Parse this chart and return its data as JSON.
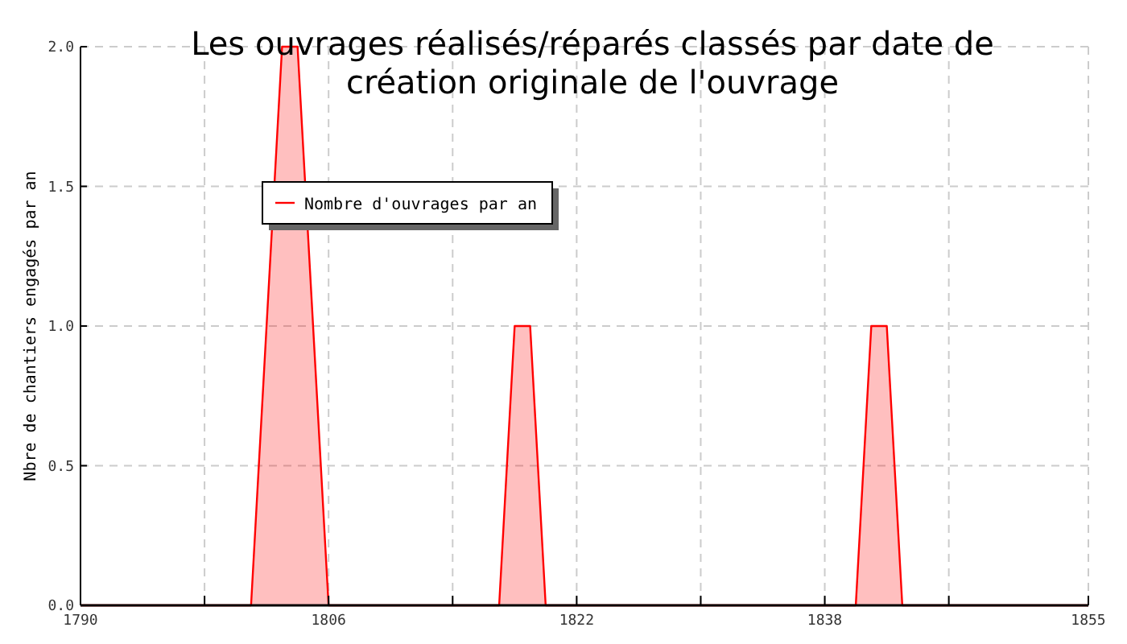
{
  "chart_data": {
    "type": "area",
    "title": "Les ouvrages réalisés/réparés classés par date de création originale de l'ouvrage",
    "ylabel": "Nbre de chantiers engagés par an",
    "x": [
      1790,
      1801,
      1803,
      1804,
      1806,
      1817,
      1818,
      1819,
      1820,
      1840,
      1841,
      1842,
      1843,
      1855
    ],
    "series": [
      {
        "name": "Nombre d'ouvrages par an",
        "color": "#ff0000",
        "values": [
          0,
          0,
          2,
          2,
          0,
          0,
          1,
          1,
          0,
          0,
          1,
          1,
          0,
          0
        ]
      }
    ],
    "xlim": [
      1790,
      1855
    ],
    "xticks": [
      1790,
      {
        "value": 1798,
        "label": null
      },
      1806,
      {
        "value": 1814,
        "label": null
      },
      1822,
      {
        "value": 1830,
        "label": null
      },
      1838,
      {
        "value": 1846,
        "label": null
      },
      1855
    ],
    "ylim": [
      0,
      2
    ],
    "yticks": [
      {
        "value": 0,
        "label": "0.0"
      },
      {
        "value": 0.5,
        "label": "0.5"
      },
      {
        "value": 1,
        "label": "1.0"
      },
      {
        "value": 1.5,
        "label": "1.5"
      },
      {
        "value": 2,
        "label": "2.0"
      }
    ],
    "grid": true,
    "legend": "top left"
  }
}
